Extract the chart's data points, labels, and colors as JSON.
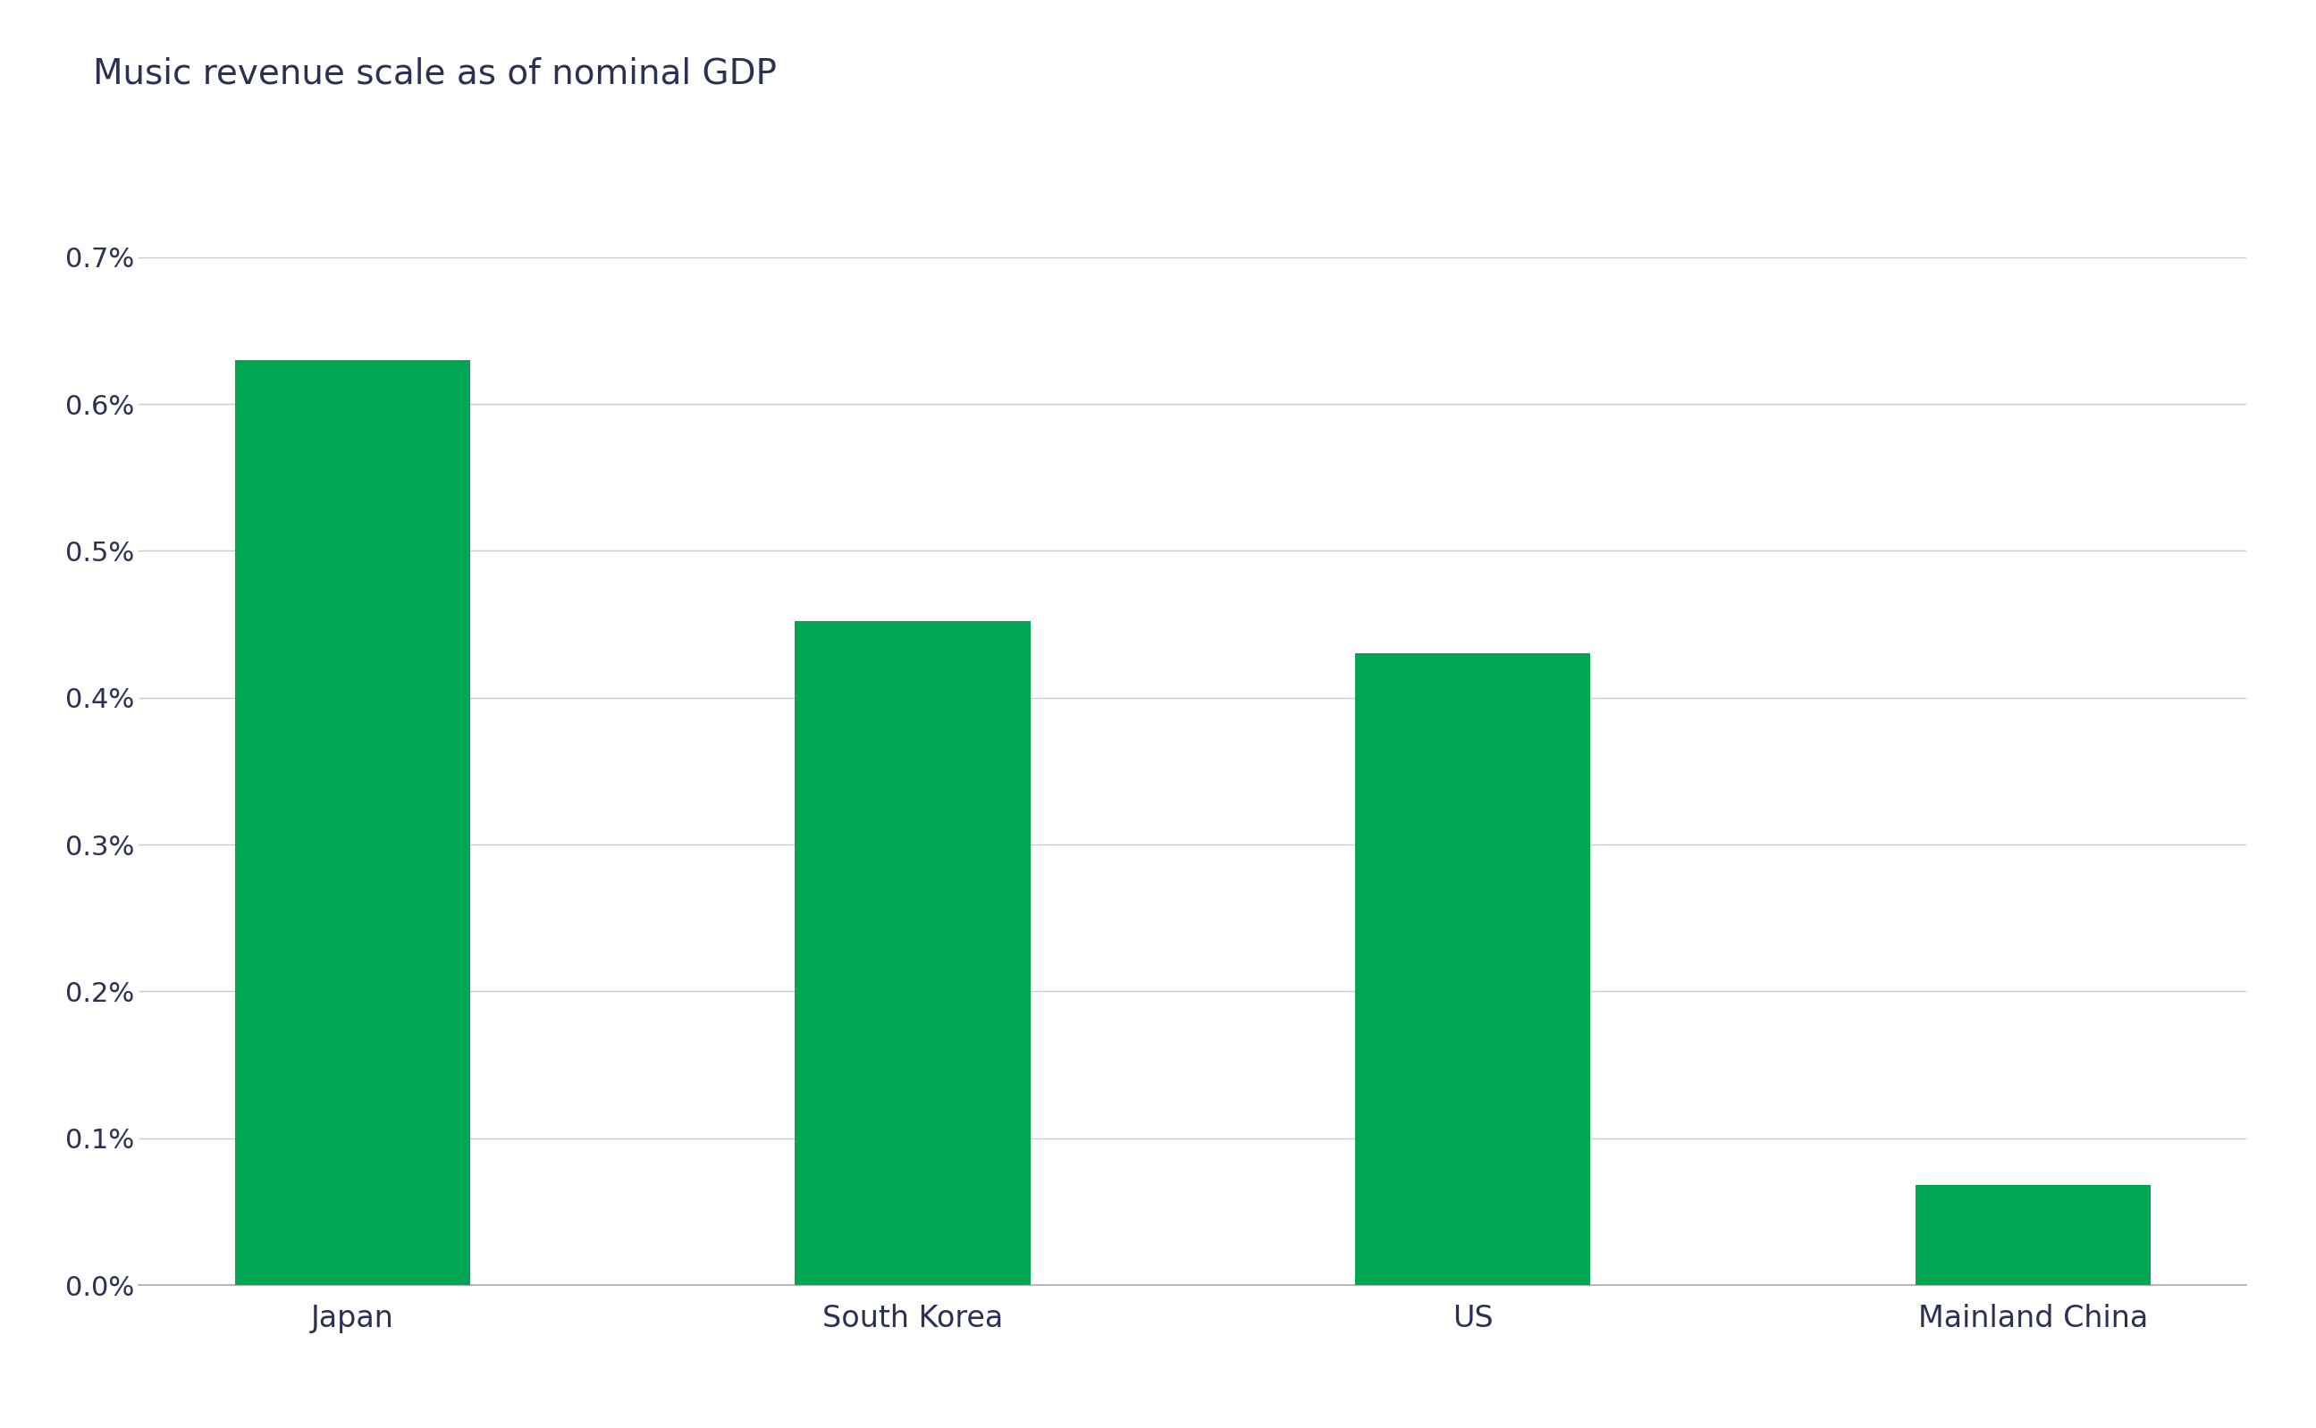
{
  "title": "Music revenue scale as of nominal GDP",
  "categories": [
    "Japan",
    "South Korea",
    "US",
    "Mainland China"
  ],
  "values": [
    0.0063,
    0.00452,
    0.0043,
    0.00068
  ],
  "bar_color": "#00A651",
  "background_color": "#ffffff",
  "ylim": [
    0,
    0.007
  ],
  "yticks": [
    0.0,
    0.001,
    0.002,
    0.003,
    0.004,
    0.005,
    0.006,
    0.007
  ],
  "title_fontsize": 28,
  "tick_fontsize": 22,
  "xlabel_fontsize": 24,
  "title_color": "#2b3152",
  "tick_color": "#2b3152",
  "grid_color": "#cccccc",
  "axis_color": "#aaaaaa",
  "bar_width": 0.42
}
